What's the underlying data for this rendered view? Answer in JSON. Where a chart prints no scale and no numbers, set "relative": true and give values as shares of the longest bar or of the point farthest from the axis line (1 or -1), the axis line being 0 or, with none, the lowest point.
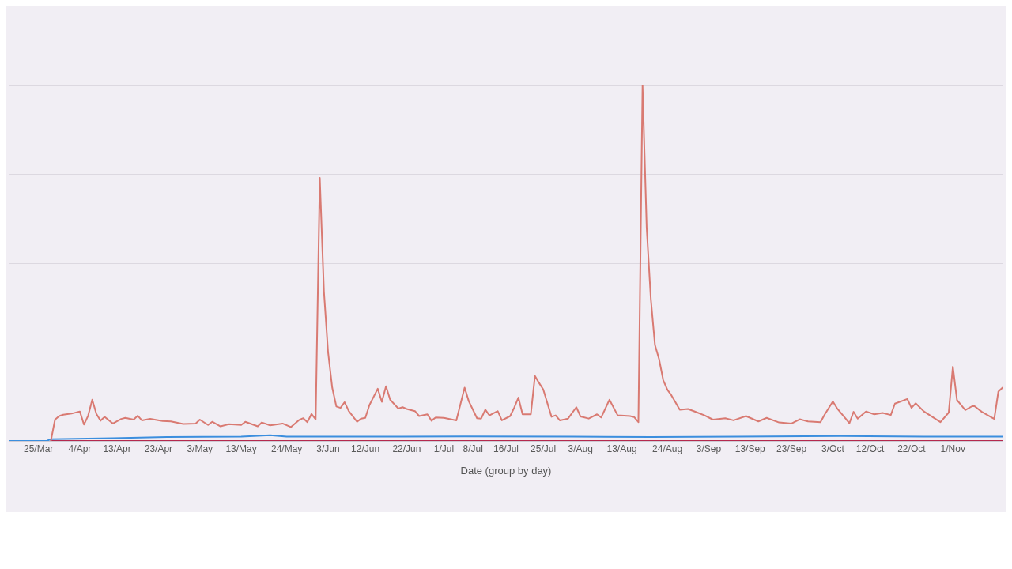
{
  "chart_data": {
    "type": "line",
    "relative": true,
    "grid": "y",
    "xlabel": "Date (group by day)",
    "xlim": [
      "--03-18",
      "--11-13"
    ],
    "xticks": [
      {
        "value": "--03-25",
        "label": "25/Mar"
      },
      {
        "value": "--04-04",
        "label": "4/Apr"
      },
      {
        "value": "--04-13",
        "label": "13/Apr"
      },
      {
        "value": "--04-23",
        "label": "23/Apr"
      },
      {
        "value": "--05-03",
        "label": "3/May"
      },
      {
        "value": "--05-13",
        "label": "13/May"
      },
      {
        "value": "--05-24",
        "label": "24/May"
      },
      {
        "value": "--06-03",
        "label": "3/Jun"
      },
      {
        "value": "--06-12",
        "label": "12/Jun"
      },
      {
        "value": "--06-22",
        "label": "22/Jun"
      },
      {
        "value": "--07-01",
        "label": "1/Jul"
      },
      {
        "value": "--07-08",
        "label": "8/Jul"
      },
      {
        "value": "--07-16",
        "label": "16/Jul"
      },
      {
        "value": "--07-25",
        "label": "25/Jul"
      },
      {
        "value": "--08-03",
        "label": "3/Aug"
      },
      {
        "value": "--08-13",
        "label": "13/Aug"
      },
      {
        "value": "--08-24",
        "label": "24/Aug"
      },
      {
        "value": "--09-03",
        "label": "3/Sep"
      },
      {
        "value": "--09-13",
        "label": "13/Sep"
      },
      {
        "value": "--09-23",
        "label": "23/Sep"
      },
      {
        "value": "--10-03",
        "label": "3/Oct"
      },
      {
        "value": "--10-12",
        "label": "12/Oct"
      },
      {
        "value": "--10-22",
        "label": "22/Oct"
      },
      {
        "value": "--11-01",
        "label": "1/Nov"
      }
    ],
    "series": [
      {
        "color": "#d97a72",
        "x": [
          "--03-28",
          "--03-29",
          "--03-30",
          "--03-31",
          "--04-02",
          "--04-04",
          "--04-05",
          "--04-06",
          "--04-07",
          "--04-08",
          "--04-09",
          "--04-10",
          "--04-12",
          "--04-14",
          "--04-15",
          "--04-17",
          "--04-18",
          "--04-19",
          "--04-21",
          "--04-24",
          "--04-26",
          "--04-29",
          "--05-02",
          "--05-03",
          "--05-05",
          "--05-06",
          "--05-08",
          "--05-10",
          "--05-13",
          "--05-14",
          "--05-17",
          "--05-18",
          "--05-20",
          "--05-23",
          "--05-25",
          "--05-27",
          "--05-28",
          "--05-29",
          "--05-30",
          "--05-31",
          "--06-01",
          "--06-02",
          "--06-03",
          "--06-04",
          "--06-05",
          "--06-06",
          "--06-07",
          "--06-08",
          "--06-10",
          "--06-11",
          "--06-12",
          "--06-13",
          "--06-15",
          "--06-16",
          "--06-17",
          "--06-18",
          "--06-20",
          "--06-21",
          "--06-22",
          "--06-24",
          "--06-25",
          "--06-27",
          "--06-28",
          "--06-29",
          "--07-01",
          "--07-04",
          "--07-06",
          "--07-07",
          "--07-09",
          "--07-10",
          "--07-11",
          "--07-12",
          "--07-14",
          "--07-15",
          "--07-17",
          "--07-18",
          "--07-19",
          "--07-20",
          "--07-22",
          "--07-23",
          "--07-24",
          "--07-25",
          "--07-27",
          "--07-28",
          "--07-29",
          "--07-31",
          "--08-02",
          "--08-03",
          "--08-05",
          "--08-07",
          "--08-08",
          "--08-10",
          "--08-12",
          "--08-15",
          "--08-16",
          "--08-17",
          "--08-18",
          "--08-19",
          "--08-20",
          "--08-21",
          "--08-22",
          "--08-23",
          "--08-24",
          "--08-25",
          "--08-27",
          "--08-29",
          "--08-31",
          "--09-02",
          "--09-04",
          "--09-07",
          "--09-09",
          "--09-12",
          "--09-15",
          "--09-17",
          "--09-20",
          "--09-23",
          "--09-25",
          "--09-27",
          "--09-30",
          "--10-01",
          "--10-03",
          "--10-04",
          "--10-06",
          "--10-07",
          "--10-08",
          "--10-09",
          "--10-11",
          "--10-13",
          "--10-15",
          "--10-17",
          "--10-18",
          "--10-21",
          "--10-22",
          "--10-23",
          "--10-25",
          "--10-27",
          "--10-29",
          "--10-31",
          "--11-01",
          "--11-02",
          "--11-04",
          "--11-06",
          "--11-08",
          "--11-11",
          "--11-12",
          "--11-13"
        ],
        "values": [
          0,
          0.06,
          0.07,
          0.074,
          0.077,
          0.083,
          0.046,
          0.071,
          0.116,
          0.076,
          0.057,
          0.068,
          0.049,
          0.062,
          0.065,
          0.06,
          0.071,
          0.058,
          0.062,
          0.056,
          0.055,
          0.048,
          0.049,
          0.06,
          0.045,
          0.054,
          0.041,
          0.047,
          0.045,
          0.054,
          0.041,
          0.052,
          0.044,
          0.049,
          0.039,
          0.059,
          0.064,
          0.053,
          0.076,
          0.061,
          0.74,
          0.42,
          0.25,
          0.15,
          0.097,
          0.093,
          0.109,
          0.084,
          0.054,
          0.063,
          0.065,
          0.101,
          0.147,
          0.11,
          0.154,
          0.116,
          0.091,
          0.095,
          0.09,
          0.084,
          0.07,
          0.075,
          0.057,
          0.066,
          0.065,
          0.058,
          0.15,
          0.112,
          0.064,
          0.063,
          0.088,
          0.072,
          0.084,
          0.058,
          0.07,
          0.094,
          0.122,
          0.075,
          0.075,
          0.183,
          0.163,
          0.145,
          0.068,
          0.072,
          0.058,
          0.063,
          0.095,
          0.069,
          0.063,
          0.075,
          0.066,
          0.116,
          0.072,
          0.07,
          0.067,
          0.053,
          1,
          0.6,
          0.4,
          0.27,
          0.23,
          0.171,
          0.144,
          0.128,
          0.088,
          0.09,
          0.081,
          0.072,
          0.06,
          0.064,
          0.058,
          0.07,
          0.055,
          0.065,
          0.052,
          0.049,
          0.061,
          0.055,
          0.053,
          0.074,
          0.111,
          0.092,
          0.064,
          0.05,
          0.082,
          0.063,
          0.083,
          0.075,
          0.079,
          0.073,
          0.105,
          0.118,
          0.093,
          0.106,
          0.083,
          0.068,
          0.053,
          0.08,
          0.209,
          0.115,
          0.087,
          0.1,
          0.082,
          0.062,
          0.139,
          0.15
        ]
      },
      {
        "color": "#b5294e",
        "x": [
          "--03-28",
          "--11-13"
        ],
        "values": [
          0,
          0
        ]
      },
      {
        "color": "#3b8ede",
        "x": [
          "--03-18",
          "--03-27",
          "--03-28",
          "--04-12",
          "--04-25",
          "--05-13",
          "--05-20",
          "--05-24",
          "--06-15",
          "--07-06",
          "--08-01",
          "--08-20",
          "--09-10",
          "--10-05",
          "--10-25",
          "--11-13"
        ],
        "values": [
          0,
          0,
          0.005,
          0.008,
          0.011,
          0.012,
          0.016,
          0.012,
          0.012,
          0.013,
          0.012,
          0.011,
          0.012,
          0.014,
          0.012,
          0.012
        ]
      }
    ]
  }
}
